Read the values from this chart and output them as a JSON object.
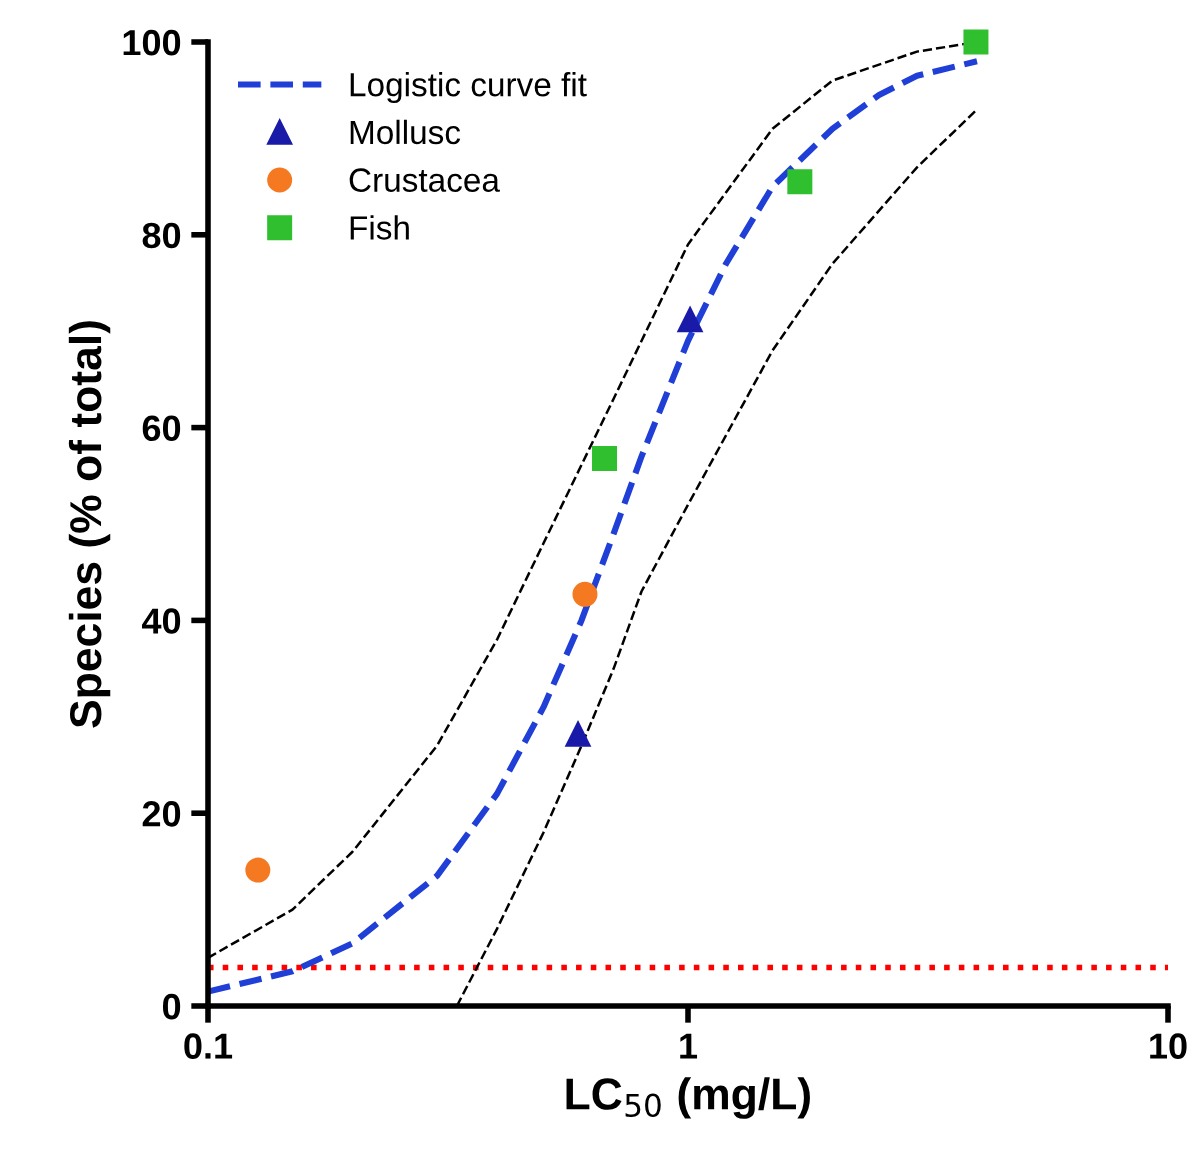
{
  "chart_data": {
    "type": "scatter",
    "xlabel": "LC$_{50}$ (mg/L)",
    "ylabel": "Species (% of total)",
    "log": "x",
    "xlim": [
      0.1,
      10
    ],
    "xticks": [
      0.1,
      1,
      10
    ],
    "ylim": [
      0,
      100
    ],
    "yticks": [
      0,
      20,
      40,
      60,
      80,
      100
    ],
    "grid": false,
    "legend": "top left",
    "series": [
      {
        "name": "Logistic curve fit",
        "type": "line",
        "line_style": "dashed",
        "marker": "none",
        "color": "#1f3fd6",
        "x": [
          0.1,
          0.15,
          0.2,
          0.3,
          0.4,
          0.5,
          0.6,
          0.7,
          0.8,
          1,
          1.2,
          1.5,
          2,
          2.5,
          3,
          4
        ],
        "values": [
          1.5,
          3.6,
          6.5,
          13.5,
          22,
          31,
          40,
          49,
          57,
          69,
          77,
          85,
          91,
          94.5,
          96.5,
          98
        ]
      },
      {
        "type": "line",
        "line_style": "dashed",
        "marker": "none",
        "color": "#000000",
        "x": [
          0.1,
          0.15,
          0.2,
          0.3,
          0.4,
          0.5,
          0.7,
          1,
          1.5,
          2,
          3,
          4
        ],
        "values": [
          5,
          10,
          16,
          27,
          38,
          48,
          63,
          79,
          91,
          96,
          99,
          100
        ]
      },
      {
        "type": "line",
        "line_style": "dashed",
        "marker": "none",
        "color": "#000000",
        "x": [
          0.33,
          0.4,
          0.5,
          0.6,
          0.7,
          0.8,
          1,
          1.5,
          2,
          3,
          4
        ],
        "values": [
          0,
          8,
          18,
          27,
          35,
          43,
          52,
          68,
          77,
          87,
          93
        ]
      },
      {
        "name": "Mollusc",
        "marker": "triangle",
        "color": "#1a1aa8",
        "x": [
          0.59,
          1.01
        ],
        "values": [
          28.2,
          71.2
        ]
      },
      {
        "name": "Crustacea",
        "marker": "circle",
        "color": "#f47920",
        "x": [
          0.127,
          0.61
        ],
        "values": [
          14.1,
          42.7
        ]
      },
      {
        "name": "Fish",
        "marker": "square",
        "color": "#2fbf2f",
        "x": [
          0.67,
          1.71,
          3.98
        ],
        "values": [
          56.8,
          85.5,
          100
        ]
      }
    ],
    "ref_lines": [
      {
        "axis": "y",
        "value": 4,
        "color": "#ff0000",
        "line_style": "dotted"
      }
    ]
  }
}
